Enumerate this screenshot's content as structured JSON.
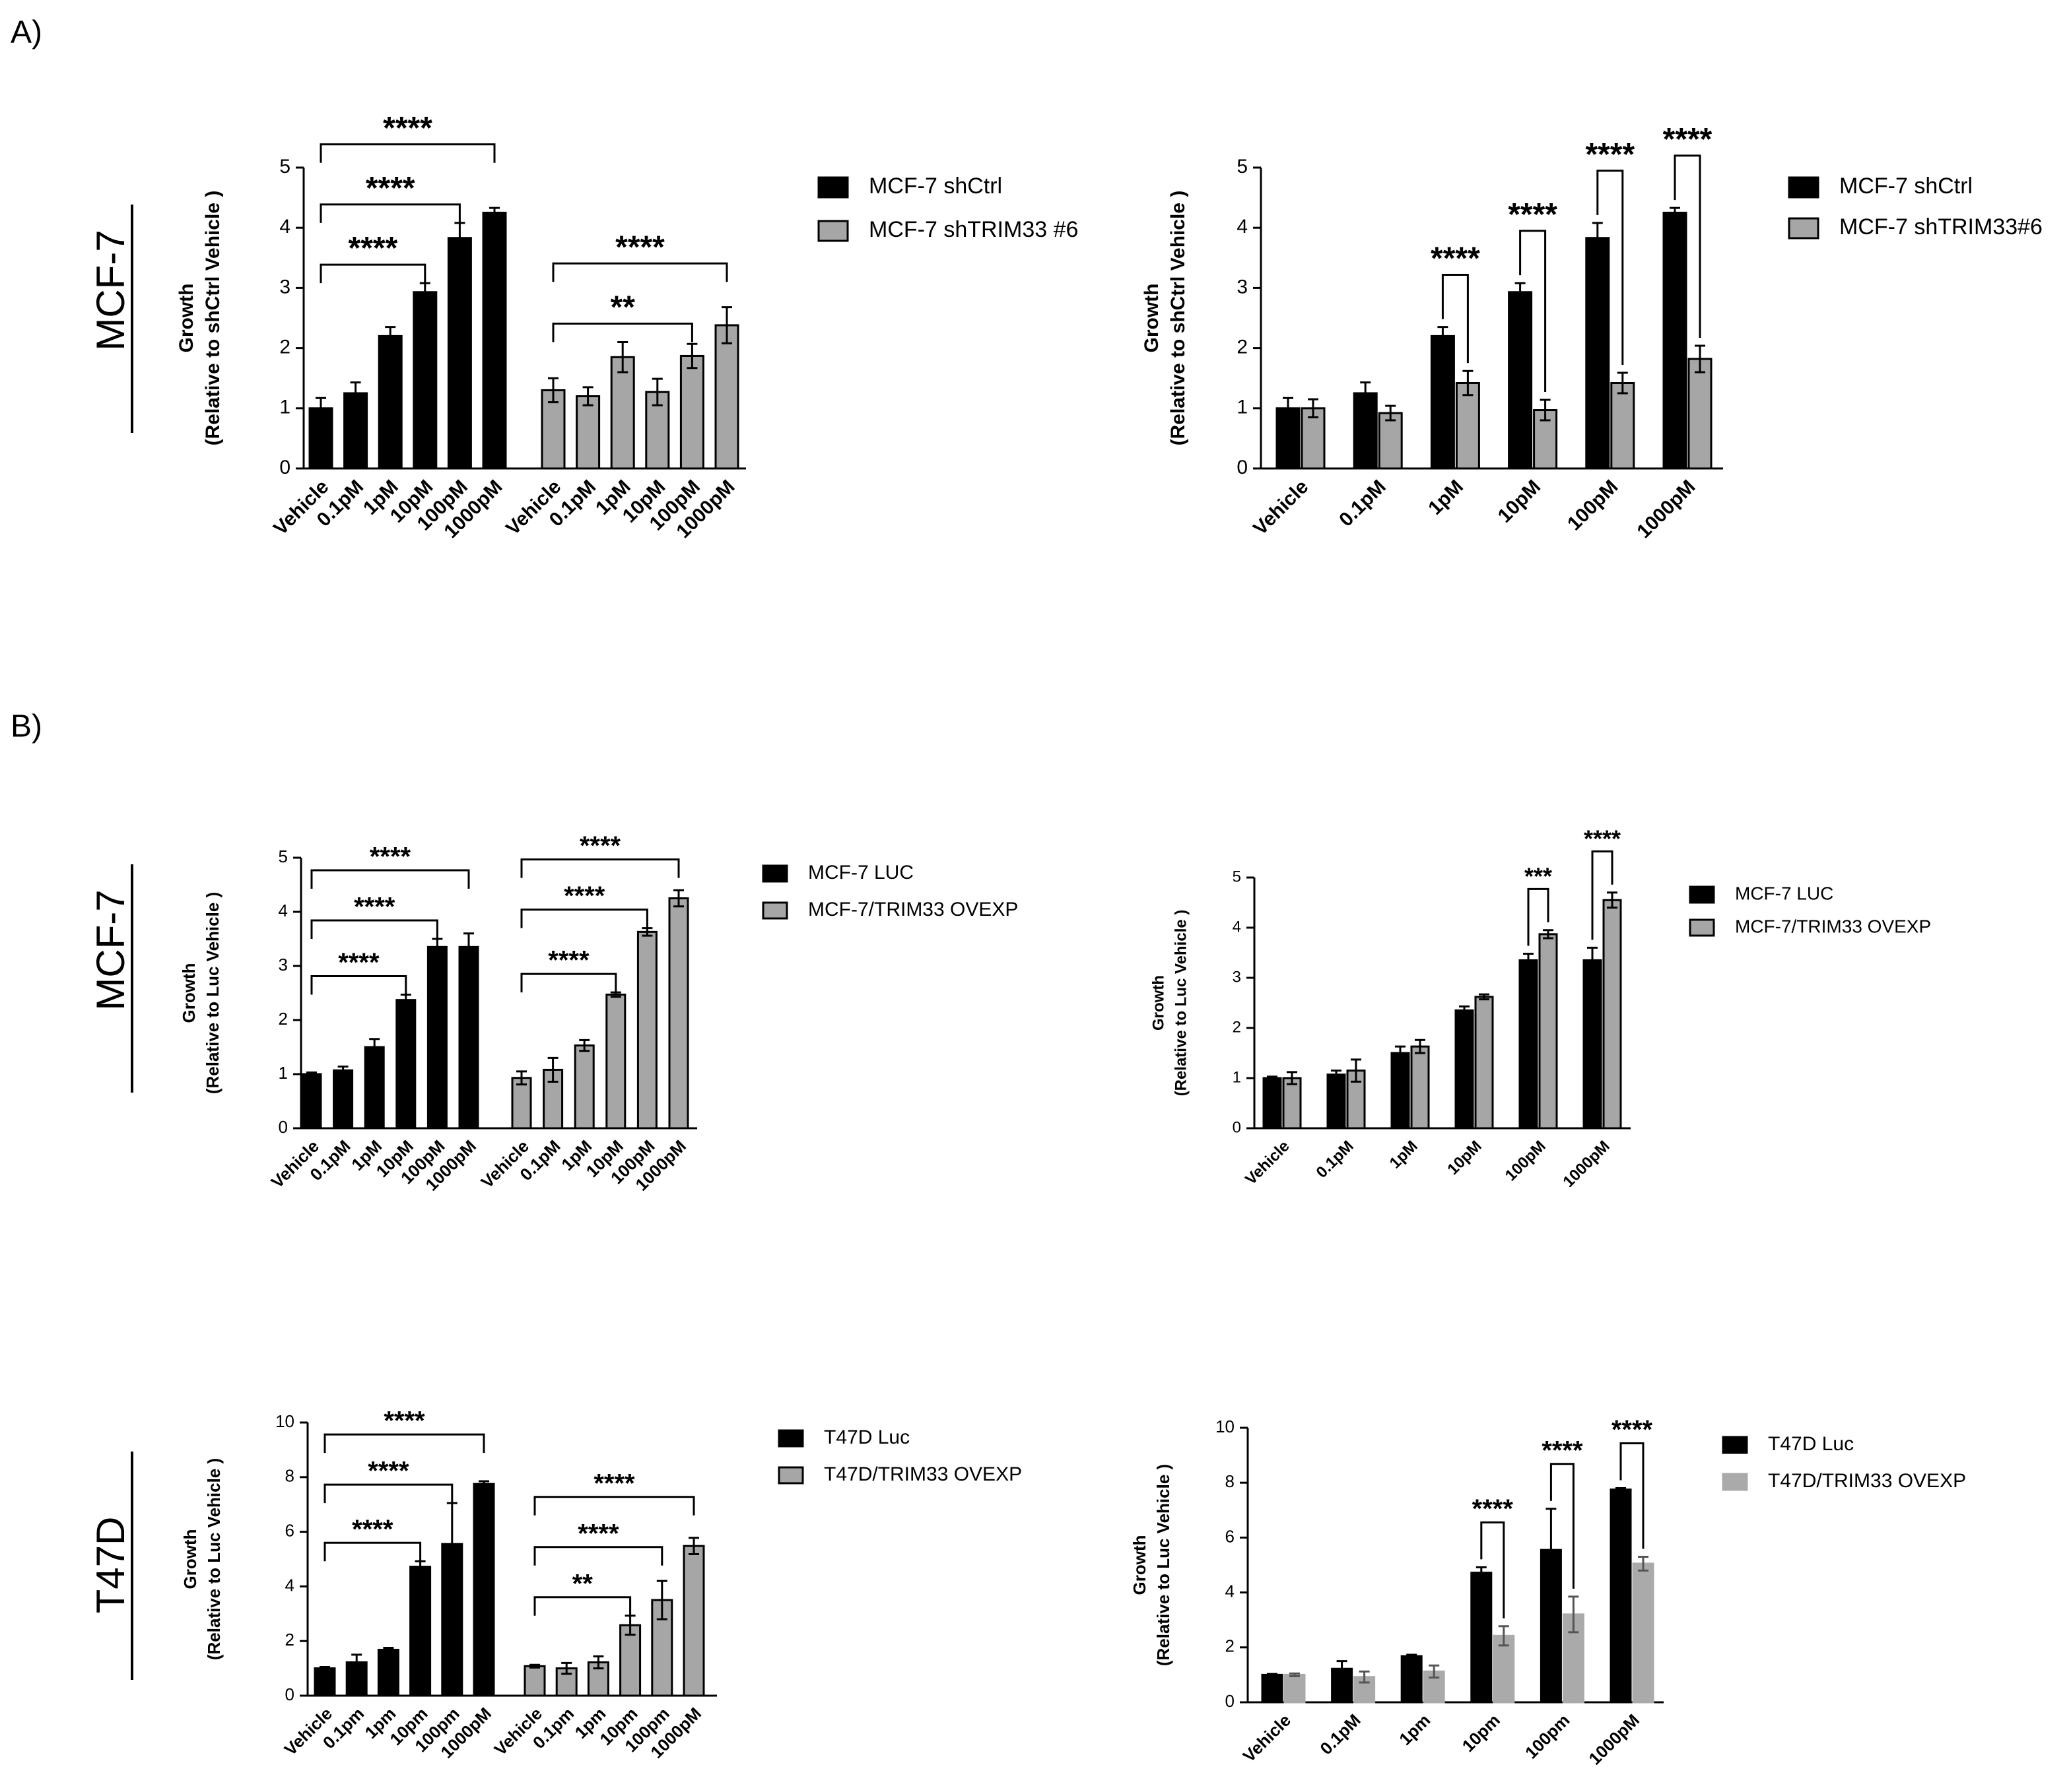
{
  "panels": [
    "A)",
    "B)"
  ],
  "row_labels": [
    "MCF-7",
    "MCF-7",
    "T47D"
  ],
  "chart_data": [
    {
      "type": "bar",
      "grouped": false,
      "ylabel": [
        "Growth",
        "(Relative to shCtrl Vehicle )"
      ],
      "ylim": [
        0,
        5
      ],
      "yticks": [
        0,
        1,
        2,
        3,
        4,
        5
      ],
      "categories": [
        "Vehicle",
        "0.1pM",
        "1pM",
        "10pM",
        "100pM",
        "1000pM"
      ],
      "series": [
        {
          "name": "MCF-7 shCtrl",
          "color": "#000000",
          "edgecolor": "#000000",
          "values": [
            1.0,
            1.25,
            2.2,
            2.93,
            3.83,
            4.25
          ],
          "errors": [
            0.17,
            0.18,
            0.15,
            0.15,
            0.25,
            0.08
          ]
        },
        {
          "name": "MCF-7 shTRIM33 #6",
          "color": "#a6a6a6",
          "edgecolor": "#000000",
          "values": [
            1.3,
            1.2,
            1.85,
            1.27,
            1.87,
            2.38
          ],
          "errors": [
            0.2,
            0.15,
            0.25,
            0.22,
            0.2,
            0.3
          ]
        }
      ],
      "brackets": [
        {
          "series": 0,
          "from": 0,
          "to": 3,
          "label": "****"
        },
        {
          "series": 0,
          "from": 0,
          "to": 4,
          "label": "****"
        },
        {
          "series": 0,
          "from": 0,
          "to": 5,
          "label": "****"
        },
        {
          "series": 1,
          "from": 0,
          "to": 4,
          "label": "**"
        },
        {
          "series": 1,
          "from": 0,
          "to": 5,
          "label": "****"
        }
      ]
    },
    {
      "type": "bar",
      "grouped": true,
      "ylabel": [
        "Growth",
        "(Relative to shCtrl Vehicle )"
      ],
      "ylim": [
        0,
        5
      ],
      "yticks": [
        0,
        1,
        2,
        3,
        4,
        5
      ],
      "categories": [
        "Vehicle",
        "0.1pM",
        "1pM",
        "10pM",
        "100pM",
        "1000pM"
      ],
      "series": [
        {
          "name": "MCF-7 shCtrl",
          "color": "#000000",
          "edgecolor": "#000000",
          "values": [
            1.0,
            1.25,
            2.2,
            2.93,
            3.83,
            4.25
          ],
          "errors": [
            0.17,
            0.18,
            0.15,
            0.15,
            0.25,
            0.08
          ]
        },
        {
          "name": "MCF-7 shTRIM33#6",
          "color": "#a6a6a6",
          "edgecolor": "#000000",
          "values": [
            1.0,
            0.92,
            1.42,
            0.97,
            1.42,
            1.82
          ],
          "errors": [
            0.15,
            0.12,
            0.2,
            0.17,
            0.17,
            0.22
          ]
        }
      ],
      "brackets": [
        {
          "category": 2,
          "label": "****"
        },
        {
          "category": 3,
          "label": "****"
        },
        {
          "category": 4,
          "label": "****"
        },
        {
          "category": 5,
          "label": "****"
        }
      ]
    },
    {
      "type": "bar",
      "grouped": false,
      "ylabel": [
        "Growth",
        "(Relative to Luc Vehicle )"
      ],
      "ylim": [
        0,
        5
      ],
      "yticks": [
        0,
        1,
        2,
        3,
        4,
        5
      ],
      "categories": [
        "Vehicle",
        "0.1pM",
        "1pM",
        "10pM",
        "100pM",
        "1000pM"
      ],
      "series": [
        {
          "name": "MCF-7 LUC",
          "color": "#000000",
          "edgecolor": "#000000",
          "values": [
            1.0,
            1.07,
            1.5,
            2.37,
            3.35,
            3.35
          ],
          "errors": [
            0.03,
            0.07,
            0.15,
            0.1,
            0.15,
            0.25
          ]
        },
        {
          "name": "MCF-7/TRIM33 OVEXP",
          "color": "#a6a6a6",
          "edgecolor": "#000000",
          "values": [
            0.93,
            1.08,
            1.53,
            2.47,
            3.63,
            4.25
          ],
          "errors": [
            0.12,
            0.22,
            0.1,
            0.04,
            0.07,
            0.15
          ]
        }
      ],
      "brackets": [
        {
          "series": 0,
          "from": 0,
          "to": 3,
          "label": "****"
        },
        {
          "series": 0,
          "from": 0,
          "to": 4,
          "label": "****"
        },
        {
          "series": 0,
          "from": 0,
          "to": 5,
          "label": "****"
        },
        {
          "series": 1,
          "from": 0,
          "to": 3,
          "label": "****"
        },
        {
          "series": 1,
          "from": 0,
          "to": 4,
          "label": "****"
        },
        {
          "series": 1,
          "from": 0,
          "to": 5,
          "label": "****"
        }
      ]
    },
    {
      "type": "bar",
      "grouped": true,
      "ylabel": [
        "Growth",
        "(Relative to Luc Vehicle )"
      ],
      "ylim": [
        0,
        5
      ],
      "yticks": [
        0,
        1,
        2,
        3,
        4,
        5
      ],
      "categories": [
        "Vehicle",
        "0.1pM",
        "1pM",
        "10pM",
        "100pM",
        "1000pM"
      ],
      "series": [
        {
          "name": "MCF-7 LUC",
          "color": "#000000",
          "edgecolor": "#000000",
          "values": [
            1.0,
            1.07,
            1.5,
            2.35,
            3.35,
            3.35
          ],
          "errors": [
            0.03,
            0.08,
            0.13,
            0.08,
            0.13,
            0.25
          ]
        },
        {
          "name": "MCF-7/TRIM33 OVEXP",
          "color": "#a6a6a6",
          "edgecolor": "#000000",
          "values": [
            1.0,
            1.15,
            1.63,
            2.62,
            3.87,
            4.55
          ],
          "errors": [
            0.12,
            0.22,
            0.13,
            0.05,
            0.08,
            0.15
          ]
        }
      ],
      "brackets": [
        {
          "category": 4,
          "label": "***"
        },
        {
          "category": 5,
          "label": "****"
        }
      ]
    },
    {
      "type": "bar",
      "grouped": false,
      "ylabel": [
        "Growth",
        "(Relative to Luc Vehicle )"
      ],
      "ylim": [
        0,
        10
      ],
      "yticks": [
        0,
        2,
        4,
        6,
        8,
        10
      ],
      "categories": [
        "Vehicle",
        "0.1pm",
        "1pm",
        "10pm",
        "100pm",
        "1000pM"
      ],
      "series": [
        {
          "name": "T47D Luc",
          "color": "#000000",
          "edgecolor": "#000000",
          "values": [
            1.0,
            1.22,
            1.68,
            4.72,
            5.55,
            7.75
          ],
          "errors": [
            0.05,
            0.28,
            0.07,
            0.2,
            1.5,
            0.1
          ]
        },
        {
          "name": "T47D/TRIM33 OVEXP",
          "color": "#a6a6a6",
          "edgecolor": "#000000",
          "values": [
            1.08,
            1.0,
            1.22,
            2.58,
            3.5,
            5.48
          ],
          "errors": [
            0.05,
            0.2,
            0.22,
            0.35,
            0.7,
            0.3
          ]
        }
      ],
      "brackets": [
        {
          "series": 0,
          "from": 0,
          "to": 3,
          "label": "****"
        },
        {
          "series": 0,
          "from": 0,
          "to": 4,
          "label": "****"
        },
        {
          "series": 0,
          "from": 0,
          "to": 5,
          "label": "****"
        },
        {
          "series": 1,
          "from": 0,
          "to": 3,
          "label": "**"
        },
        {
          "series": 1,
          "from": 0,
          "to": 4,
          "label": "****"
        },
        {
          "series": 1,
          "from": 0,
          "to": 5,
          "label": "****"
        }
      ]
    },
    {
      "type": "bar",
      "grouped": true,
      "ylabel": [
        "Growth",
        "(Relative to Luc Vehicle )"
      ],
      "ylim": [
        0,
        10
      ],
      "yticks": [
        0,
        2,
        4,
        6,
        8,
        10
      ],
      "categories": [
        "Vehicle",
        "0.1pM",
        "1pm",
        "10pm",
        "100pm",
        "1000pM"
      ],
      "series": [
        {
          "name": "T47D Luc",
          "color": "#000000",
          "edgecolor": "#000000",
          "values": [
            1.0,
            1.22,
            1.68,
            4.72,
            5.55,
            7.75
          ],
          "errors": [
            0.03,
            0.28,
            0.05,
            0.2,
            1.5,
            0.05
          ]
        },
        {
          "name": "T47D/TRIM33 OVEXP",
          "color": "#aaaaaa",
          "edgecolor": "#aaaaaa",
          "values": [
            1.0,
            0.92,
            1.12,
            2.42,
            3.2,
            5.05
          ],
          "errors": [
            0.05,
            0.2,
            0.22,
            0.35,
            0.65,
            0.25
          ]
        }
      ],
      "brackets": [
        {
          "category": 3,
          "label": "****"
        },
        {
          "category": 4,
          "label": "****"
        },
        {
          "category": 5,
          "label": "****"
        }
      ]
    }
  ]
}
